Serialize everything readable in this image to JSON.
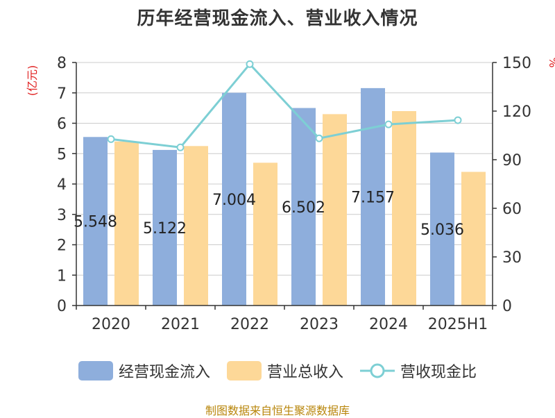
{
  "title": "历年经营现金流入、营业收入情况",
  "source": "制图数据来自恒生聚源数据库",
  "colors": {
    "cash_inflow": "#8eaedc",
    "revenue": "#fdd898",
    "ratio": "#7dcfd4",
    "axis": "#333333",
    "grid": "#cccccc",
    "unit_label": "#e02020",
    "source": "#b8860b"
  },
  "legend": [
    {
      "key": "cash_inflow",
      "label": "经营现金流入"
    },
    {
      "key": "revenue",
      "label": "营业总收入"
    },
    {
      "key": "ratio",
      "label": "营收现金比"
    }
  ],
  "chart_data": {
    "type": "bar",
    "categories": [
      "2020",
      "2021",
      "2022",
      "2023",
      "2024",
      "2025H1"
    ],
    "series": [
      {
        "name": "经营现金流入",
        "type": "bar",
        "axis": "left",
        "values": [
          5.548,
          5.122,
          7.004,
          6.502,
          7.157,
          5.036
        ],
        "data_labels": [
          "5.548",
          "5.122",
          "7.004",
          "6.502",
          "7.157",
          "5.036"
        ]
      },
      {
        "name": "营业总收入",
        "type": "bar",
        "axis": "left",
        "values": [
          5.4,
          5.25,
          4.7,
          6.3,
          6.4,
          4.4
        ]
      },
      {
        "name": "营收现金比",
        "type": "line",
        "axis": "right",
        "values": [
          102.7,
          97.6,
          149.0,
          103.2,
          111.8,
          114.4
        ]
      }
    ],
    "y_left": {
      "label": "(亿元)",
      "ylim": [
        0,
        8
      ],
      "ticks": [
        0,
        1,
        2,
        3,
        4,
        5,
        6,
        7,
        8
      ]
    },
    "y_right": {
      "label": "%",
      "ylim": [
        0,
        150
      ],
      "ticks": [
        0,
        30,
        60,
        90,
        120,
        150
      ]
    },
    "grid": true,
    "legend_position": "bottom"
  }
}
